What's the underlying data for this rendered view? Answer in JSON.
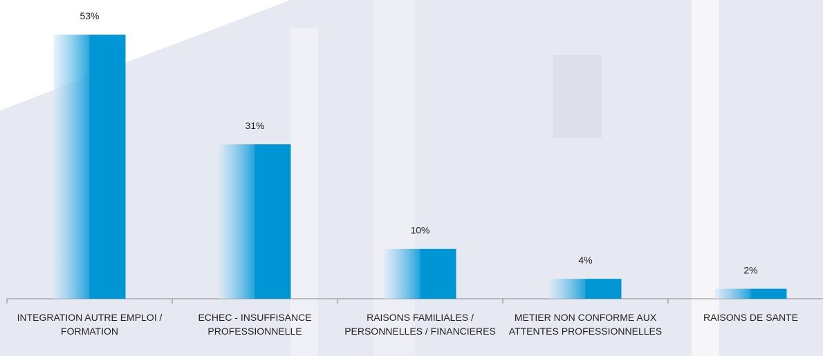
{
  "chart_data": {
    "type": "bar",
    "categories": [
      "INTEGRATION AUTRE EMPLOI / FORMATION",
      "ECHEC - INSUFFISANCE PROFESSIONNELLE",
      "RAISONS FAMILIALES / PERSONNELLES / FINANCIERES",
      "METIER NON CONFORME AUX ATTENTES PROFESSIONNELLES",
      "RAISONS DE SANTE"
    ],
    "values": [
      53,
      31,
      10,
      4,
      2
    ],
    "value_labels": [
      "53%",
      "31%",
      "10%",
      "4%",
      "2%"
    ],
    "color": "#0096d6"
  }
}
